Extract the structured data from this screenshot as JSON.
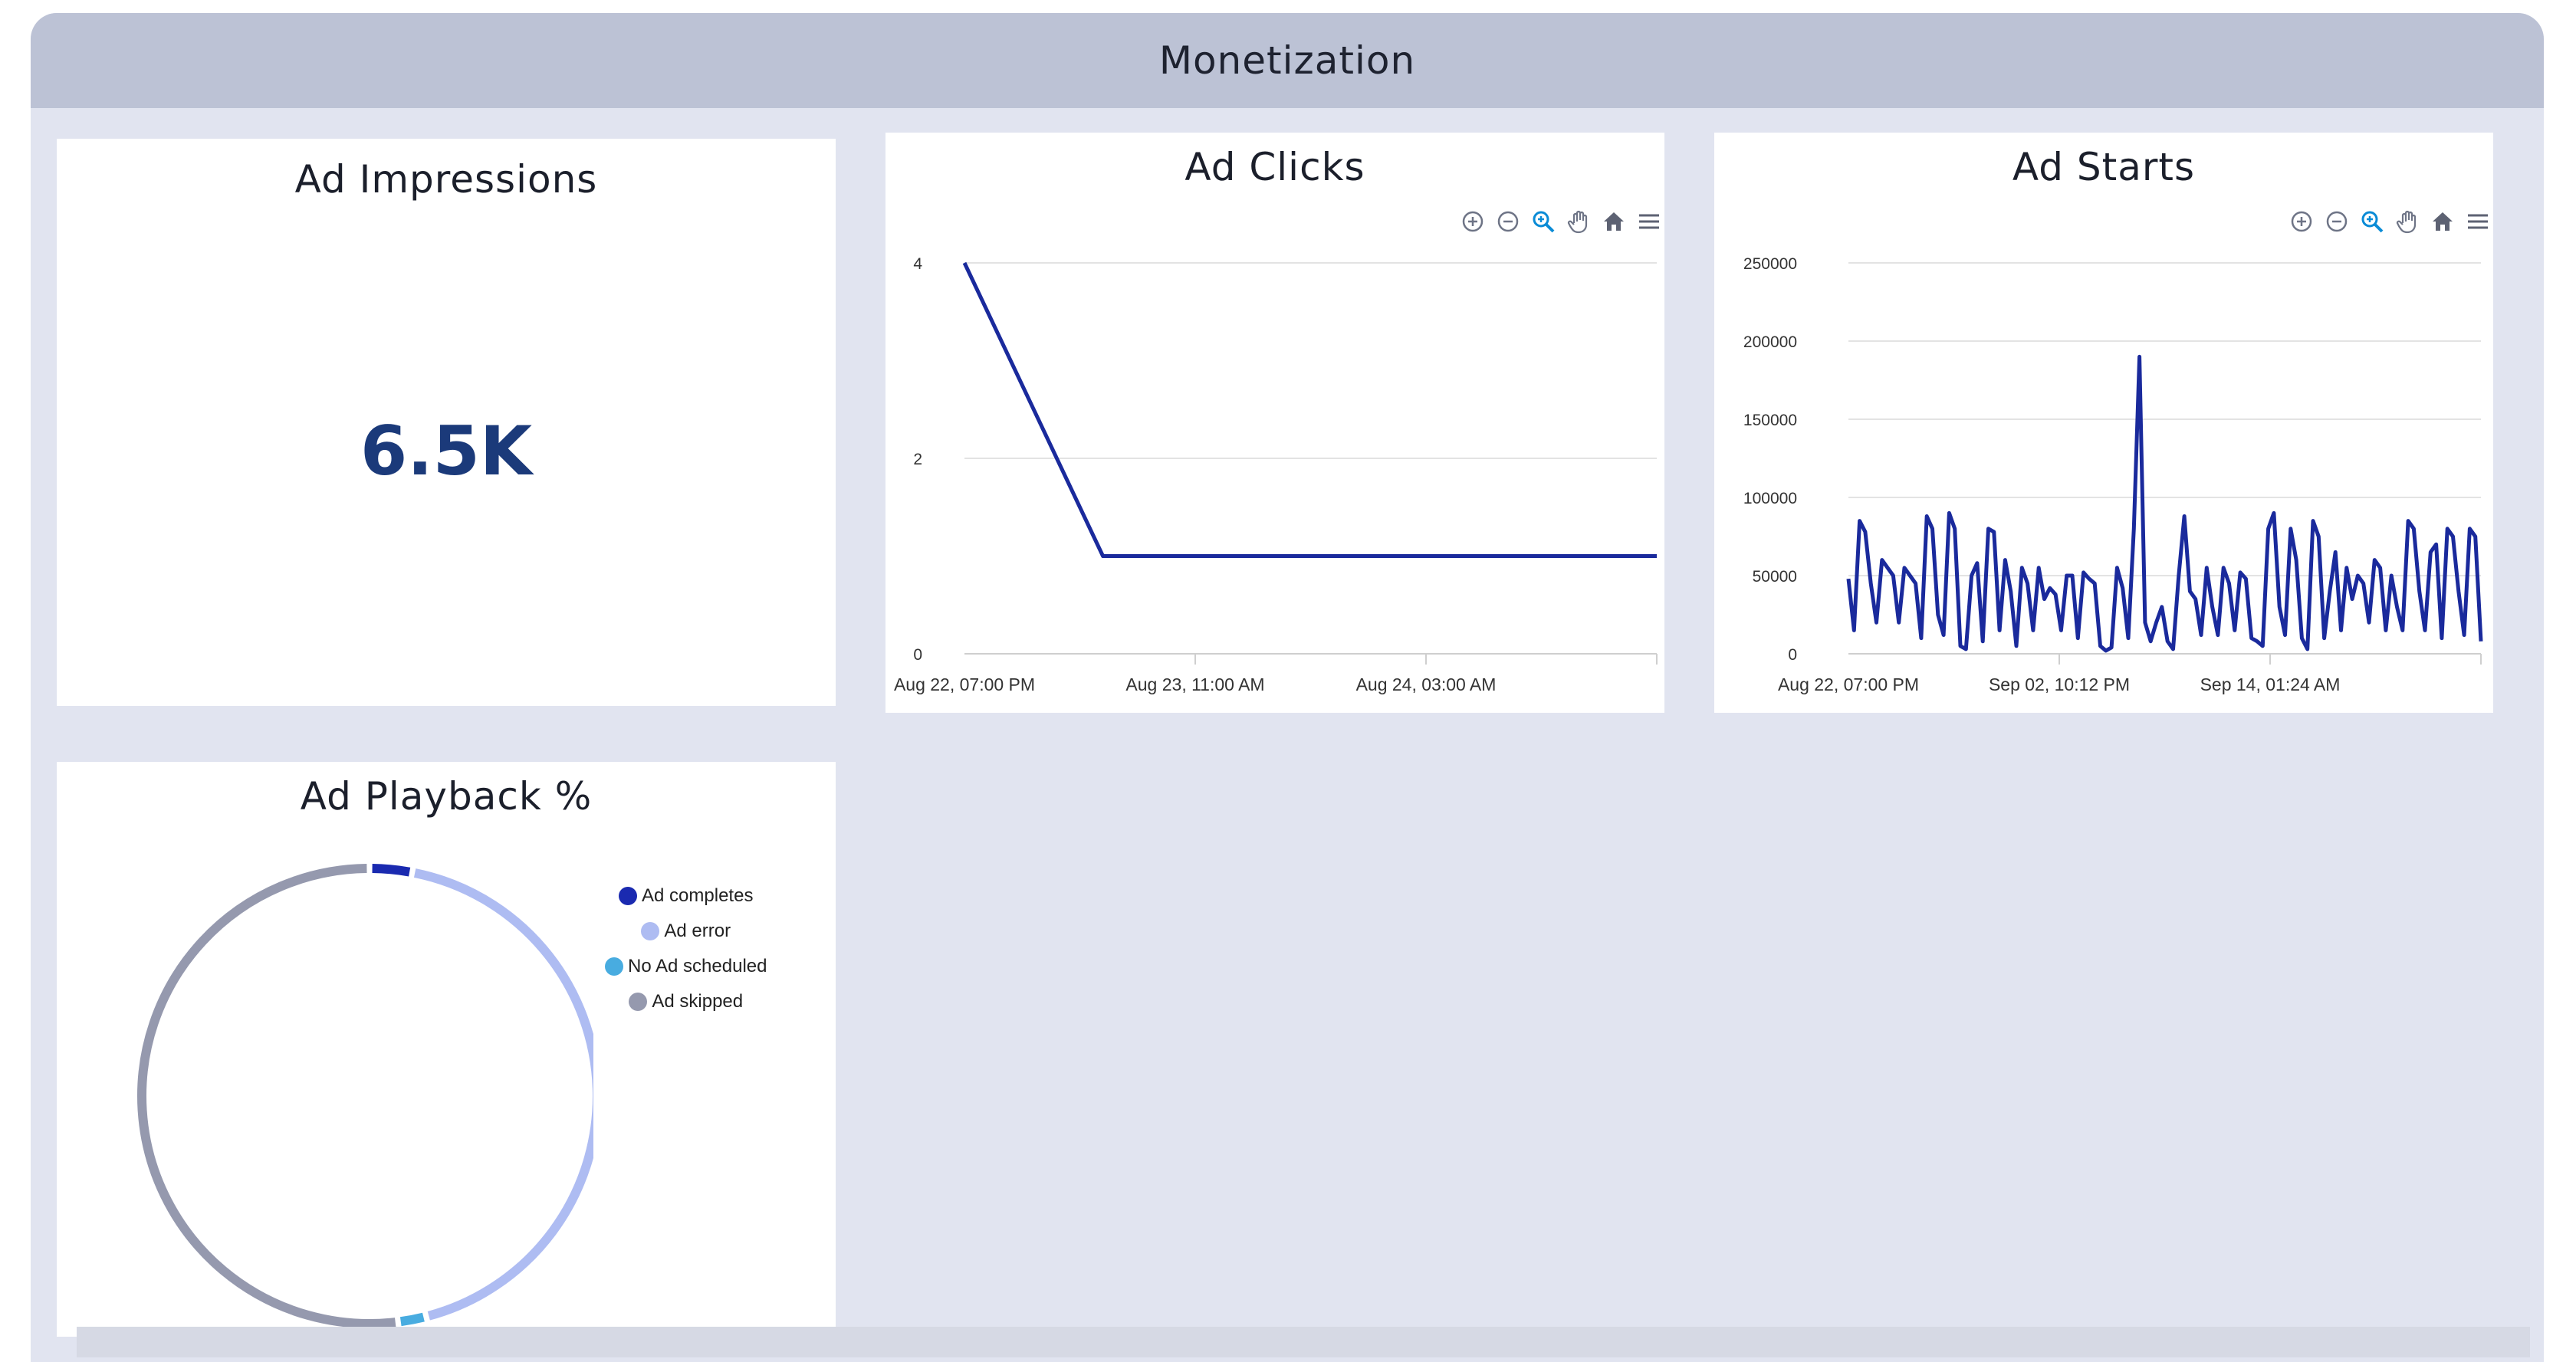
{
  "section": {
    "title": "Monetization"
  },
  "impressions": {
    "title": "Ad Impressions",
    "value": "6.5K",
    "value_color": "#1b3a7a"
  },
  "clicks": {
    "title": "Ad Clicks",
    "chart_data": {
      "type": "line",
      "title": "Ad Clicks",
      "x_tick_labels": [
        "Aug 22, 07:00 PM",
        "Aug 23, 11:00 AM",
        "Aug 24, 03:00 AM"
      ],
      "y_ticks": [
        0,
        2,
        4
      ],
      "ylim": [
        0,
        4
      ],
      "series": [
        {
          "values": [
            4,
            1,
            1,
            1,
            1,
            1
          ]
        }
      ],
      "line_color": "#1a2a9c",
      "grid": true
    }
  },
  "starts": {
    "title": "Ad Starts",
    "chart_data": {
      "type": "line",
      "title": "Ad Starts",
      "x_tick_labels": [
        "Aug 22, 07:00 PM",
        "Sep 02, 10:12 PM",
        "Sep 14, 01:24 AM"
      ],
      "y_ticks": [
        0,
        50000,
        100000,
        150000,
        200000,
        250000
      ],
      "ylim": [
        0,
        250000
      ],
      "series": [
        {
          "values": [
            48000,
            15000,
            85000,
            78000,
            45000,
            20000,
            60000,
            55000,
            50000,
            20000,
            55000,
            50000,
            45000,
            10000,
            88000,
            80000,
            25000,
            12000,
            90000,
            80000,
            5000,
            3000,
            50000,
            58000,
            8000,
            80000,
            78000,
            15000,
            60000,
            40000,
            5000,
            55000,
            45000,
            15000,
            55000,
            35000,
            42000,
            38000,
            15000,
            50000,
            50000,
            10000,
            52000,
            48000,
            45000,
            5000,
            2000,
            4000,
            55000,
            42000,
            10000,
            80000,
            190000,
            20000,
            8000,
            20000,
            30000,
            8000,
            3000,
            50000,
            88000,
            40000,
            35000,
            12000,
            55000,
            30000,
            12000,
            55000,
            45000,
            15000,
            52000,
            48000,
            10000,
            8000,
            5000,
            80000,
            90000,
            30000,
            12000,
            80000,
            60000,
            10000,
            3000,
            85000,
            75000,
            10000,
            40000,
            65000,
            15000,
            55000,
            35000,
            50000,
            45000,
            20000,
            60000,
            55000,
            15000,
            50000,
            30000,
            15000,
            85000,
            80000,
            40000,
            15000,
            65000,
            70000,
            10000,
            80000,
            75000,
            40000,
            12000,
            80000,
            75000,
            8000
          ]
        }
      ],
      "line_color": "#1a2a9c",
      "grid": true
    }
  },
  "playback": {
    "title": "Ad Playback %",
    "chart_data": {
      "type": "pie",
      "title": "Ad Playback %",
      "labels": [
        "Ad completes",
        "Ad error",
        "No Ad scheduled",
        "Ad skipped"
      ],
      "values": [
        3,
        43,
        2,
        52
      ],
      "colors": [
        "#1a2ab0",
        "#aebcf2",
        "#48ace0",
        "#9599ae"
      ]
    }
  }
}
